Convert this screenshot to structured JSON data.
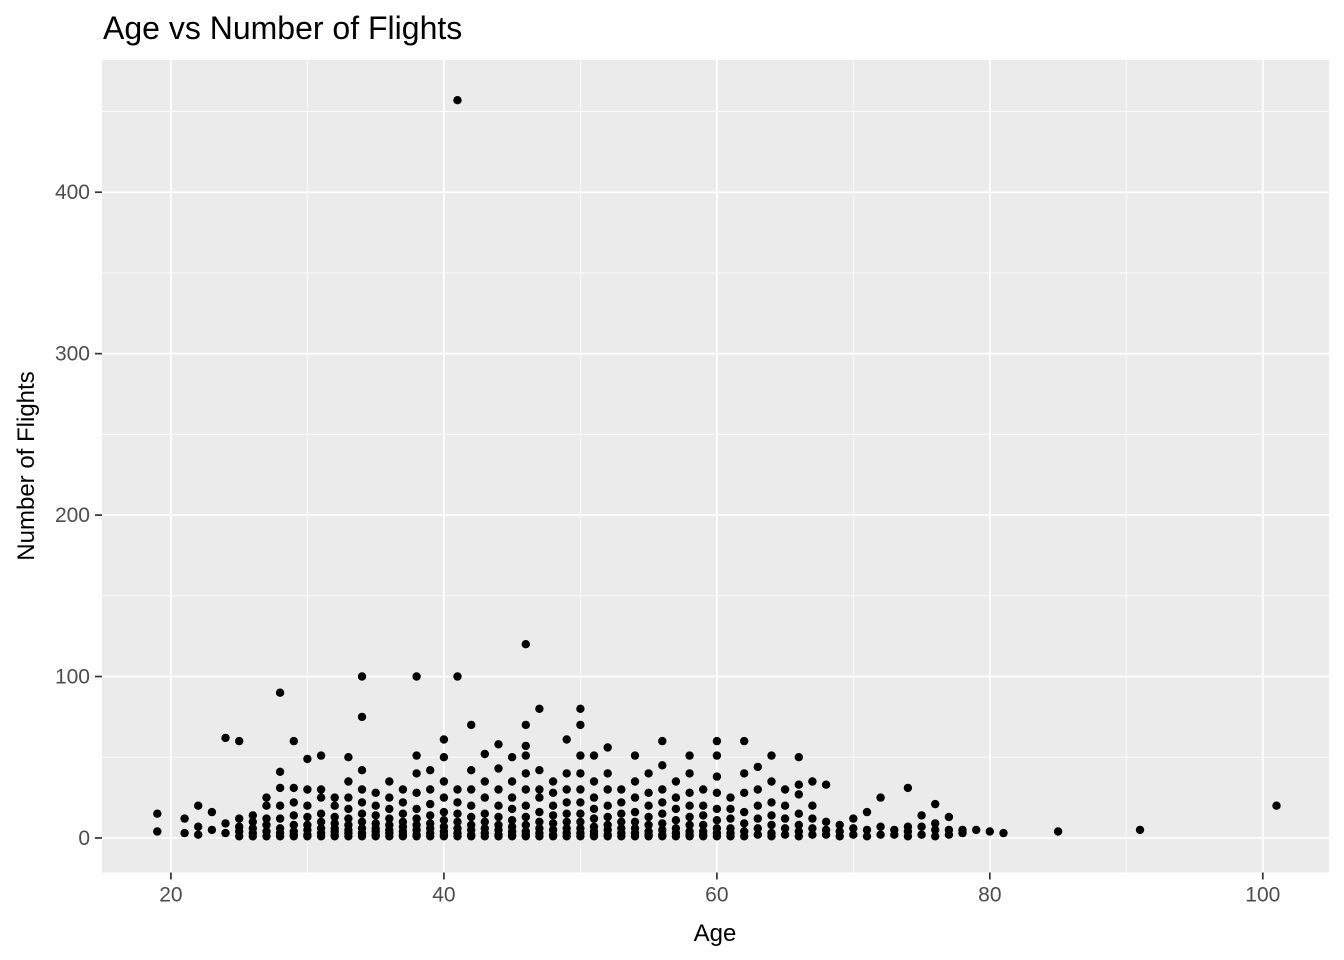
{
  "chart_data": {
    "type": "scatter",
    "title": "Age vs Number of Flights",
    "xlabel": "Age",
    "ylabel": "Number of Flights",
    "xlim": [
      14.95,
      104.85
    ],
    "ylim": [
      -21.4,
      481.9
    ],
    "x_major_ticks": [
      20,
      40,
      60,
      80,
      100
    ],
    "x_minor_ticks": [
      30,
      50,
      70,
      90
    ],
    "y_major_ticks": [
      0,
      100,
      200,
      300,
      400
    ],
    "y_minor_ticks": [
      50,
      150,
      250,
      350,
      450
    ],
    "grid": true,
    "legend": "none",
    "colors": {
      "panel_background": "#ebebeb",
      "grid_major": "#ffffff",
      "grid_minor": "#f5f5f5",
      "point": "#000000",
      "tick_mark": "#333333",
      "tick_label": "#4d4d4d",
      "title_text": "#000000",
      "page_background": "#ffffff"
    },
    "points": [
      [
        19,
        15
      ],
      [
        19,
        4
      ],
      [
        21,
        12
      ],
      [
        21,
        3
      ],
      [
        22,
        20
      ],
      [
        22,
        7
      ],
      [
        22,
        2
      ],
      [
        23,
        16
      ],
      [
        23,
        5
      ],
      [
        24,
        62
      ],
      [
        24,
        9
      ],
      [
        24,
        3
      ],
      [
        25,
        60
      ],
      [
        25,
        12
      ],
      [
        25,
        7
      ],
      [
        25,
        4
      ],
      [
        25,
        1
      ],
      [
        26,
        14
      ],
      [
        26,
        10
      ],
      [
        26,
        6
      ],
      [
        26,
        3
      ],
      [
        26,
        1
      ],
      [
        27,
        25
      ],
      [
        27,
        20
      ],
      [
        27,
        12
      ],
      [
        27,
        8
      ],
      [
        27,
        4
      ],
      [
        27,
        1
      ],
      [
        28,
        90
      ],
      [
        28,
        41
      ],
      [
        28,
        31
      ],
      [
        28,
        20
      ],
      [
        28,
        12
      ],
      [
        28,
        6
      ],
      [
        28,
        3
      ],
      [
        28,
        1
      ],
      [
        29,
        60
      ],
      [
        29,
        31
      ],
      [
        29,
        22
      ],
      [
        29,
        14
      ],
      [
        29,
        8
      ],
      [
        29,
        4
      ],
      [
        29,
        2
      ],
      [
        29,
        1
      ],
      [
        30,
        49
      ],
      [
        30,
        30
      ],
      [
        30,
        20
      ],
      [
        30,
        13
      ],
      [
        30,
        8
      ],
      [
        30,
        5
      ],
      [
        30,
        2
      ],
      [
        30,
        1
      ],
      [
        31,
        51
      ],
      [
        31,
        30
      ],
      [
        31,
        25
      ],
      [
        31,
        15
      ],
      [
        31,
        10
      ],
      [
        31,
        6
      ],
      [
        31,
        3
      ],
      [
        31,
        1
      ],
      [
        32,
        25
      ],
      [
        32,
        20
      ],
      [
        32,
        13
      ],
      [
        32,
        9
      ],
      [
        32,
        6
      ],
      [
        32,
        4
      ],
      [
        32,
        2
      ],
      [
        32,
        1
      ],
      [
        33,
        50
      ],
      [
        33,
        35
      ],
      [
        33,
        25
      ],
      [
        33,
        18
      ],
      [
        33,
        12
      ],
      [
        33,
        8
      ],
      [
        33,
        5
      ],
      [
        33,
        3
      ],
      [
        33,
        1
      ],
      [
        34,
        100
      ],
      [
        34,
        75
      ],
      [
        34,
        42
      ],
      [
        34,
        30
      ],
      [
        34,
        22
      ],
      [
        34,
        15
      ],
      [
        34,
        10
      ],
      [
        34,
        6
      ],
      [
        34,
        3
      ],
      [
        34,
        1
      ],
      [
        35,
        28
      ],
      [
        35,
        20
      ],
      [
        35,
        14
      ],
      [
        35,
        9
      ],
      [
        35,
        6
      ],
      [
        35,
        4
      ],
      [
        35,
        2
      ],
      [
        35,
        1
      ],
      [
        36,
        35
      ],
      [
        36,
        25
      ],
      [
        36,
        18
      ],
      [
        36,
        12
      ],
      [
        36,
        8
      ],
      [
        36,
        5
      ],
      [
        36,
        3
      ],
      [
        36,
        1
      ],
      [
        37,
        30
      ],
      [
        37,
        22
      ],
      [
        37,
        15
      ],
      [
        37,
        10
      ],
      [
        37,
        7
      ],
      [
        37,
        4
      ],
      [
        37,
        2
      ],
      [
        37,
        1
      ],
      [
        38,
        100
      ],
      [
        38,
        51
      ],
      [
        38,
        40
      ],
      [
        38,
        28
      ],
      [
        38,
        18
      ],
      [
        38,
        12
      ],
      [
        38,
        8
      ],
      [
        38,
        5
      ],
      [
        38,
        2
      ],
      [
        38,
        1
      ],
      [
        39,
        42
      ],
      [
        39,
        30
      ],
      [
        39,
        21
      ],
      [
        39,
        14
      ],
      [
        39,
        9
      ],
      [
        39,
        6
      ],
      [
        39,
        3
      ],
      [
        39,
        1
      ],
      [
        40,
        61
      ],
      [
        40,
        50
      ],
      [
        40,
        35
      ],
      [
        40,
        25
      ],
      [
        40,
        16
      ],
      [
        40,
        11
      ],
      [
        40,
        7
      ],
      [
        40,
        4
      ],
      [
        40,
        2
      ],
      [
        40,
        1
      ],
      [
        41,
        457
      ],
      [
        41,
        100
      ],
      [
        41,
        30
      ],
      [
        41,
        22
      ],
      [
        41,
        15
      ],
      [
        41,
        10
      ],
      [
        41,
        6
      ],
      [
        41,
        3
      ],
      [
        41,
        1
      ],
      [
        42,
        70
      ],
      [
        42,
        42
      ],
      [
        42,
        30
      ],
      [
        42,
        20
      ],
      [
        42,
        13
      ],
      [
        42,
        8
      ],
      [
        42,
        5
      ],
      [
        42,
        2
      ],
      [
        42,
        1
      ],
      [
        43,
        52
      ],
      [
        43,
        35
      ],
      [
        43,
        25
      ],
      [
        43,
        15
      ],
      [
        43,
        10
      ],
      [
        43,
        6
      ],
      [
        43,
        3
      ],
      [
        43,
        1
      ],
      [
        44,
        58
      ],
      [
        44,
        43
      ],
      [
        44,
        30
      ],
      [
        44,
        20
      ],
      [
        44,
        13
      ],
      [
        44,
        8
      ],
      [
        44,
        5
      ],
      [
        44,
        2
      ],
      [
        44,
        1
      ],
      [
        45,
        50
      ],
      [
        45,
        35
      ],
      [
        45,
        25
      ],
      [
        45,
        18
      ],
      [
        45,
        11
      ],
      [
        45,
        7
      ],
      [
        45,
        4
      ],
      [
        45,
        2
      ],
      [
        45,
        1
      ],
      [
        46,
        120
      ],
      [
        46,
        70
      ],
      [
        46,
        57
      ],
      [
        46,
        51
      ],
      [
        46,
        40
      ],
      [
        46,
        30
      ],
      [
        46,
        20
      ],
      [
        46,
        13
      ],
      [
        46,
        8
      ],
      [
        46,
        4
      ],
      [
        46,
        2
      ],
      [
        46,
        1
      ],
      [
        47,
        80
      ],
      [
        47,
        42
      ],
      [
        47,
        30
      ],
      [
        47,
        25
      ],
      [
        47,
        16
      ],
      [
        47,
        10
      ],
      [
        47,
        6
      ],
      [
        47,
        3
      ],
      [
        47,
        1
      ],
      [
        48,
        35
      ],
      [
        48,
        28
      ],
      [
        48,
        20
      ],
      [
        48,
        14
      ],
      [
        48,
        9
      ],
      [
        48,
        5
      ],
      [
        48,
        2
      ],
      [
        48,
        1
      ],
      [
        49,
        61
      ],
      [
        49,
        40
      ],
      [
        49,
        30
      ],
      [
        49,
        22
      ],
      [
        49,
        15
      ],
      [
        49,
        10
      ],
      [
        49,
        6
      ],
      [
        49,
        3
      ],
      [
        49,
        1
      ],
      [
        50,
        80
      ],
      [
        50,
        70
      ],
      [
        50,
        51
      ],
      [
        50,
        40
      ],
      [
        50,
        30
      ],
      [
        50,
        22
      ],
      [
        50,
        15
      ],
      [
        50,
        10
      ],
      [
        50,
        6
      ],
      [
        50,
        3
      ],
      [
        50,
        1
      ],
      [
        51,
        51
      ],
      [
        51,
        35
      ],
      [
        51,
        25
      ],
      [
        51,
        18
      ],
      [
        51,
        12
      ],
      [
        51,
        7
      ],
      [
        51,
        4
      ],
      [
        51,
        2
      ],
      [
        51,
        1
      ],
      [
        52,
        56
      ],
      [
        52,
        40
      ],
      [
        52,
        30
      ],
      [
        52,
        20
      ],
      [
        52,
        13
      ],
      [
        52,
        8
      ],
      [
        52,
        5
      ],
      [
        52,
        2
      ],
      [
        52,
        1
      ],
      [
        53,
        30
      ],
      [
        53,
        22
      ],
      [
        53,
        15
      ],
      [
        53,
        10
      ],
      [
        53,
        6
      ],
      [
        53,
        3
      ],
      [
        53,
        1
      ],
      [
        54,
        51
      ],
      [
        54,
        35
      ],
      [
        54,
        25
      ],
      [
        54,
        16
      ],
      [
        54,
        10
      ],
      [
        54,
        6
      ],
      [
        54,
        3
      ],
      [
        54,
        1
      ],
      [
        55,
        40
      ],
      [
        55,
        28
      ],
      [
        55,
        20
      ],
      [
        55,
        13
      ],
      [
        55,
        8
      ],
      [
        55,
        4
      ],
      [
        55,
        2
      ],
      [
        55,
        1
      ],
      [
        56,
        60
      ],
      [
        56,
        45
      ],
      [
        56,
        30
      ],
      [
        56,
        22
      ],
      [
        56,
        15
      ],
      [
        56,
        9
      ],
      [
        56,
        5
      ],
      [
        56,
        2
      ],
      [
        56,
        1
      ],
      [
        57,
        35
      ],
      [
        57,
        25
      ],
      [
        57,
        18
      ],
      [
        57,
        11
      ],
      [
        57,
        6
      ],
      [
        57,
        3
      ],
      [
        57,
        1
      ],
      [
        58,
        51
      ],
      [
        58,
        40
      ],
      [
        58,
        28
      ],
      [
        58,
        20
      ],
      [
        58,
        13
      ],
      [
        58,
        8
      ],
      [
        58,
        4
      ],
      [
        58,
        2
      ],
      [
        58,
        1
      ],
      [
        59,
        30
      ],
      [
        59,
        20
      ],
      [
        59,
        14
      ],
      [
        59,
        8
      ],
      [
        59,
        4
      ],
      [
        59,
        2
      ],
      [
        59,
        1
      ],
      [
        60,
        60
      ],
      [
        60,
        51
      ],
      [
        60,
        38
      ],
      [
        60,
        28
      ],
      [
        60,
        18
      ],
      [
        60,
        11
      ],
      [
        60,
        6
      ],
      [
        60,
        3
      ],
      [
        60,
        1
      ],
      [
        61,
        25
      ],
      [
        61,
        18
      ],
      [
        61,
        12
      ],
      [
        61,
        6
      ],
      [
        61,
        3
      ],
      [
        61,
        1
      ],
      [
        62,
        60
      ],
      [
        62,
        40
      ],
      [
        62,
        28
      ],
      [
        62,
        16
      ],
      [
        62,
        9
      ],
      [
        62,
        4
      ],
      [
        62,
        1
      ],
      [
        63,
        44
      ],
      [
        63,
        30
      ],
      [
        63,
        20
      ],
      [
        63,
        12
      ],
      [
        63,
        6
      ],
      [
        63,
        2
      ],
      [
        64,
        51
      ],
      [
        64,
        35
      ],
      [
        64,
        22
      ],
      [
        64,
        14
      ],
      [
        64,
        8
      ],
      [
        64,
        3
      ],
      [
        64,
        1
      ],
      [
        65,
        30
      ],
      [
        65,
        20
      ],
      [
        65,
        12
      ],
      [
        65,
        6
      ],
      [
        65,
        2
      ],
      [
        66,
        50
      ],
      [
        66,
        33
      ],
      [
        66,
        27
      ],
      [
        66,
        15
      ],
      [
        66,
        8
      ],
      [
        66,
        4
      ],
      [
        66,
        1
      ],
      [
        67,
        35
      ],
      [
        67,
        20
      ],
      [
        67,
        12
      ],
      [
        67,
        6
      ],
      [
        67,
        2
      ],
      [
        68,
        33
      ],
      [
        68,
        10
      ],
      [
        68,
        5
      ],
      [
        68,
        2
      ],
      [
        69,
        8
      ],
      [
        69,
        4
      ],
      [
        69,
        1
      ],
      [
        70,
        12
      ],
      [
        70,
        6
      ],
      [
        70,
        2
      ],
      [
        71,
        16
      ],
      [
        71,
        5
      ],
      [
        71,
        1
      ],
      [
        72,
        25
      ],
      [
        72,
        7
      ],
      [
        72,
        2
      ],
      [
        73,
        5
      ],
      [
        73,
        2
      ],
      [
        74,
        31
      ],
      [
        74,
        7
      ],
      [
        74,
        4
      ],
      [
        74,
        1
      ],
      [
        75,
        14
      ],
      [
        75,
        7
      ],
      [
        75,
        2
      ],
      [
        76,
        21
      ],
      [
        76,
        9
      ],
      [
        76,
        5
      ],
      [
        76,
        1
      ],
      [
        77,
        13
      ],
      [
        77,
        5
      ],
      [
        77,
        2
      ],
      [
        78,
        5
      ],
      [
        78,
        3
      ],
      [
        79,
        5
      ],
      [
        80,
        4
      ],
      [
        81,
        3
      ],
      [
        85,
        4
      ],
      [
        91,
        5
      ],
      [
        101,
        20
      ]
    ]
  }
}
